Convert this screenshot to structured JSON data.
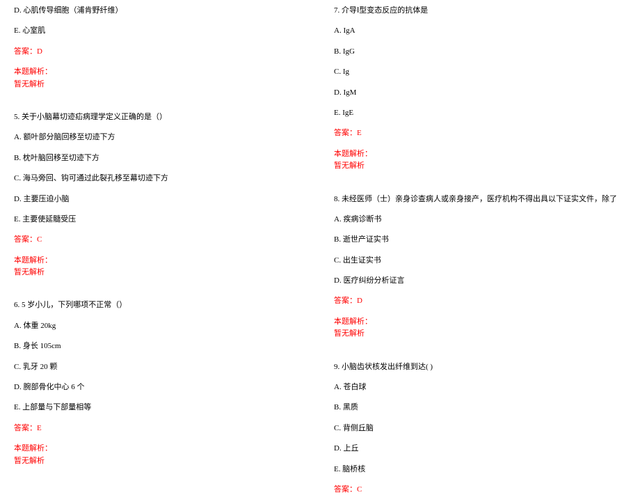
{
  "left": {
    "q4_D": "D. 心肌传导细胞（浦肯野纤维）",
    "q4_E": "E. 心室肌",
    "q4_ans": "答案：D",
    "q4_expl_label": "本题解析：",
    "q4_expl": "暂无解析",
    "q5_stem": "5. 关于小脑幕切迹疝病理学定义正确的是（）",
    "q5_A": "A. 额叶部分脑回移至切迹下方",
    "q5_B": "B. 枕叶脑回移至切迹下方",
    "q5_C": "C. 海马旁回、钩可通过此裂孔移至幕切迹下方",
    "q5_D": "D. 主要压迫小脑",
    "q5_E": "E. 主要使延髓受压",
    "q5_ans": "答案：C",
    "q5_expl_label": "本题解析：",
    "q5_expl": "暂无解析",
    "q6_stem": "6. 5 岁小儿，下列哪项不正常（）",
    "q6_A": "A. 体重 20kg",
    "q6_B": "B. 身长 105cm",
    "q6_C": "C. 乳牙 20 颗",
    "q6_D": "D. 腕部骨化中心 6 个",
    "q6_E": "E. 上部量与下部量相等",
    "q6_ans": "答案：E",
    "q6_expl_label": "本题解析：",
    "q6_expl": "暂无解析"
  },
  "right": {
    "q7_stem": "7. 介导Ⅰ型变态反应的抗体是",
    "q7_A": "A. IgA",
    "q7_B": "B. IgG",
    "q7_C": "C. Ig",
    "q7_D": "D. IgM",
    "q7_E": "E. IgE",
    "q7_ans": "答案：E",
    "q7_expl_label": "本题解析：",
    "q7_expl": "暂无解析",
    "q8_stem": "8. 未经医师（士）亲身诊查病人或亲身接产，医疗机构不得出具以下证实文件，除了",
    "q8_A": "A. 疾病诊断书",
    "q8_B": "B. 逝世产证实书",
    "q8_C": "C. 出生证实书",
    "q8_D": "D. 医疗纠纷分析证言",
    "q8_ans": "答案：D",
    "q8_expl_label": "本题解析：",
    "q8_expl": "暂无解析",
    "q9_stem": "9. 小脑齿状核发出纤维到达( )",
    "q9_A": "A. 苍白球",
    "q9_B": "B. 黑质",
    "q9_C": "C. 背侧丘脑",
    "q9_D": "D. 上丘",
    "q9_E": "E. 脑桥核",
    "q9_ans": "答案：C"
  }
}
